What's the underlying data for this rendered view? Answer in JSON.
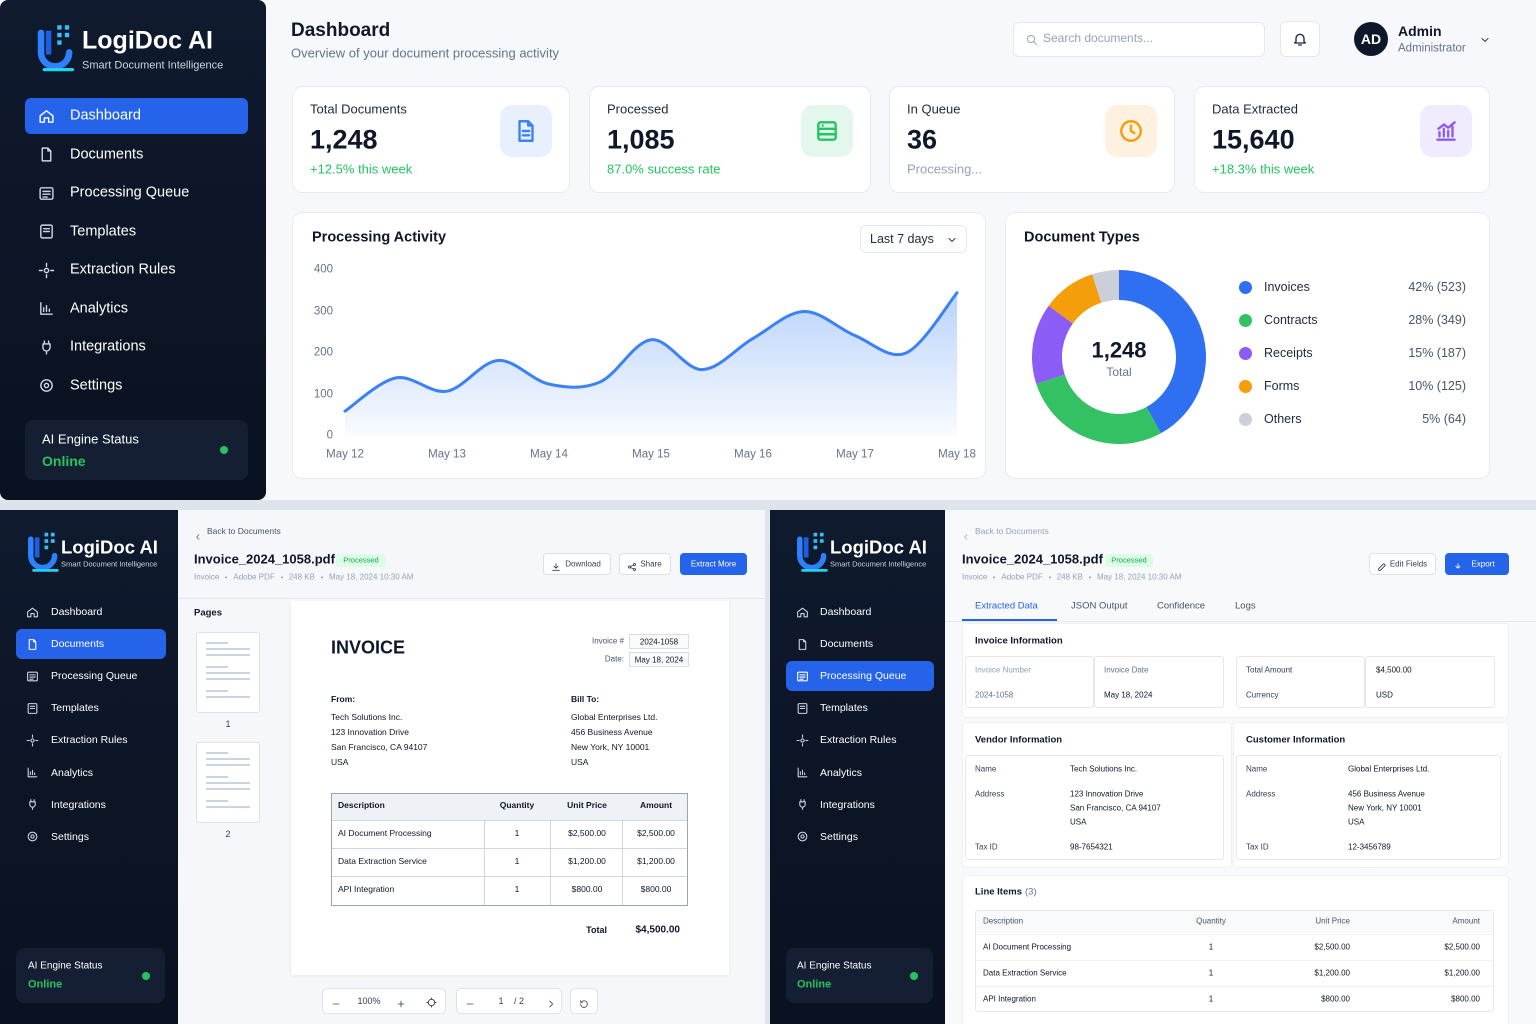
{
  "brand": {
    "name": "LogiDoc AI",
    "tagline": "Smart Document Intelligence"
  },
  "nav": [
    "Dashboard",
    "Documents",
    "Processing Queue",
    "Templates",
    "Extraction Rules",
    "Analytics",
    "Integrations",
    "Settings"
  ],
  "engine_status": {
    "label": "AI Engine Status",
    "value": "Online"
  },
  "dashboard": {
    "title": "Dashboard",
    "subtitle": "Overview of your document processing activity",
    "search_placeholder": "Search documents...",
    "user": {
      "initials": "AD",
      "name": "Admin",
      "role": "Administrator"
    },
    "stats": [
      {
        "label": "Total Documents",
        "value": "1,248",
        "note": "+12.5% this week"
      },
      {
        "label": "Processed",
        "value": "1,085",
        "note": "87.0% success rate"
      },
      {
        "label": "In Queue",
        "value": "36",
        "note": "Processing..."
      },
      {
        "label": "Data Extracted",
        "value": "15,640",
        "note": "+18.3% this week"
      }
    ]
  },
  "chart_data": [
    {
      "type": "line",
      "title": "Processing Activity",
      "range_selector": "Last 7 days",
      "categories": [
        "May 12",
        null,
        "May 13",
        null,
        "May 14",
        null,
        "May 15",
        null,
        "May 16",
        null,
        "May 17",
        null,
        "May 18"
      ],
      "values": [
        60,
        140,
        108,
        182,
        125,
        130,
        232,
        160,
        235,
        300,
        242,
        200,
        345
      ],
      "color": "#3b82f6",
      "ylim": [
        0,
        400
      ],
      "yticks": [
        0,
        100,
        200,
        300,
        400
      ],
      "grid": false
    },
    {
      "type": "pie",
      "title": "Document Types",
      "center_value": "1,248",
      "center_label": "Total",
      "donut": true,
      "categories": [
        "Invoices",
        "Contracts",
        "Receipts",
        "Forms",
        "Others"
      ],
      "values": [
        42,
        28,
        15,
        10,
        5
      ],
      "value_labels": [
        "42% (523)",
        "28% (349)",
        "15% (187)",
        "10% (125)",
        "5% (64)"
      ],
      "colors": [
        "#2f6ff2",
        "#34c163",
        "#8b5cf6",
        "#f59e0b",
        "#cbd0d8"
      ]
    }
  ],
  "document": {
    "back": "Back to Documents",
    "file_name": "Invoice_2024_1058.pdf",
    "status": "Processed",
    "meta": [
      "Invoice",
      "Adobe PDF",
      "248 KB",
      "May 18, 2024 10:30 AM"
    ]
  },
  "viewer": {
    "actions": [
      "Download",
      "Share",
      "Extract More"
    ],
    "pages_label": "Pages",
    "pages": [
      "1",
      "2"
    ],
    "zoom": "100%",
    "page": "1",
    "page_total": "/ 2"
  },
  "invoice": {
    "title": "INVOICE",
    "number_label": "Invoice #",
    "number": "2024-1058",
    "date_label": "Date:",
    "date": "May 18, 2024",
    "from_label": "From:",
    "from": [
      "Tech Solutions Inc.",
      "123 Innovation Drive",
      "San Francisco, CA 94107",
      "USA"
    ],
    "bill_to_label": "Bill To:",
    "bill_to": [
      "Global Enterprises Ltd.",
      "456 Business Avenue",
      "New York, NY 10001",
      "USA"
    ],
    "columns": [
      "Description",
      "Quantity",
      "Unit Price",
      "Amount"
    ],
    "rows": [
      [
        "AI Document Processing",
        "1",
        "$2,500.00",
        "$2,500.00"
      ],
      [
        "Data Extraction Service",
        "1",
        "$1,200.00",
        "$1,200.00"
      ],
      [
        "API Integration",
        "1",
        "$800.00",
        "$800.00"
      ]
    ],
    "total_label": "Total",
    "total": "$4,500.00",
    "currency": "USD",
    "vendor_tax_id": "98-7654321",
    "customer_tax_id": "12-3456789"
  },
  "extraction": {
    "actions": [
      "Edit Fields",
      "Export"
    ],
    "tabs": [
      "Extracted Data",
      "JSON Output",
      "Confidence",
      "Logs"
    ],
    "invoice_info": {
      "title": "Invoice Information",
      "labels": [
        "Invoice Number",
        "Invoice Date",
        "Total Amount",
        "Currency"
      ]
    },
    "vendor_title": "Vendor Information",
    "customer_title": "Customer Information",
    "party_labels": [
      "Name",
      "Address",
      "Tax ID"
    ],
    "line_items_title": "Line Items",
    "line_items_count": "(3)"
  }
}
